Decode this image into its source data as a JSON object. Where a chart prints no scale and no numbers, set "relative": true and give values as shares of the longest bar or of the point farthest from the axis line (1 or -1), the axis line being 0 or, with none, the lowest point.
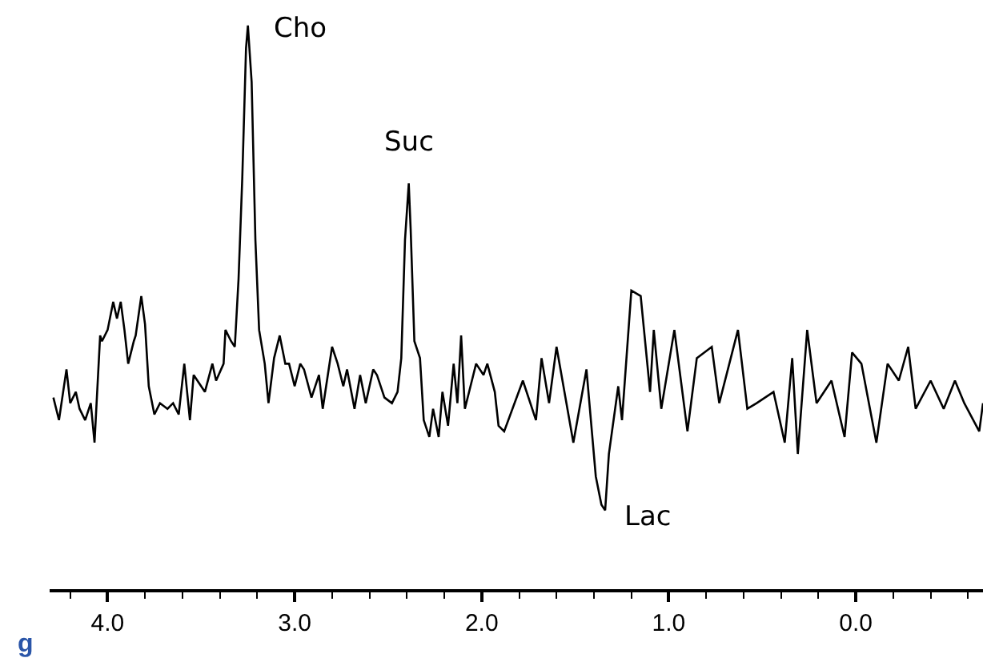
{
  "chart_data": {
    "type": "line",
    "relative": true,
    "color": "#000000",
    "marker": "none",
    "legend": false,
    "xlim": [
      4.31,
      -0.68
    ],
    "xticks": [
      {
        "value": 4.2,
        "label": null
      },
      {
        "value": 4.0,
        "label": "4.0"
      },
      {
        "value": 3.8,
        "label": null
      },
      {
        "value": 3.6,
        "label": null
      },
      {
        "value": 3.4,
        "label": null
      },
      {
        "value": 3.2,
        "label": null
      },
      {
        "value": 3.0,
        "label": "3.0"
      },
      {
        "value": 2.8,
        "label": null
      },
      {
        "value": 2.6,
        "label": null
      },
      {
        "value": 2.4,
        "label": null
      },
      {
        "value": 2.2,
        "label": null
      },
      {
        "value": 2.0,
        "label": "2.0"
      },
      {
        "value": 1.8,
        "label": null
      },
      {
        "value": 1.6,
        "label": null
      },
      {
        "value": 1.4,
        "label": null
      },
      {
        "value": 1.2,
        "label": null
      },
      {
        "value": 1.0,
        "label": "1.0"
      },
      {
        "value": 0.8,
        "label": null
      },
      {
        "value": 0.6,
        "label": null
      },
      {
        "value": 0.4,
        "label": null
      },
      {
        "value": 0.2,
        "label": null
      },
      {
        "value": 0.0,
        "label": "0.0"
      },
      {
        "value": -0.2,
        "label": null
      },
      {
        "value": -0.4,
        "label": null
      },
      {
        "value": -0.6,
        "label": null
      }
    ],
    "x": [
      4.29,
      4.26,
      4.22,
      4.2,
      4.17,
      4.15,
      4.12,
      4.09,
      4.07,
      4.04,
      4.03,
      4.0,
      3.97,
      3.95,
      3.93,
      3.91,
      3.89,
      3.86,
      3.85,
      3.82,
      3.8,
      3.78,
      3.75,
      3.72,
      3.68,
      3.65,
      3.62,
      3.59,
      3.56,
      3.54,
      3.5,
      3.48,
      3.44,
      3.42,
      3.38,
      3.37,
      3.34,
      3.32,
      3.3,
      3.28,
      3.26,
      3.25,
      3.23,
      3.21,
      3.19,
      3.16,
      3.14,
      3.11,
      3.08,
      3.05,
      3.03,
      3.0,
      2.97,
      2.95,
      2.91,
      2.87,
      2.85,
      2.8,
      2.77,
      2.74,
      2.72,
      2.68,
      2.65,
      2.62,
      2.58,
      2.56,
      2.52,
      2.48,
      2.45,
      2.43,
      2.41,
      2.39,
      2.38,
      2.36,
      2.33,
      2.31,
      2.28,
      2.26,
      2.23,
      2.21,
      2.18,
      2.15,
      2.13,
      2.11,
      2.09,
      2.06,
      2.03,
      1.99,
      1.97,
      1.93,
      1.91,
      1.88,
      1.78,
      1.71,
      1.68,
      1.64,
      1.6,
      1.51,
      1.44,
      1.39,
      1.36,
      1.34,
      1.32,
      1.27,
      1.25,
      1.2,
      1.15,
      1.1,
      1.08,
      1.04,
      0.97,
      0.9,
      0.85,
      0.77,
      0.73,
      0.63,
      0.58,
      0.53,
      0.44,
      0.38,
      0.34,
      0.31,
      0.26,
      0.21,
      0.13,
      0.06,
      0.02,
      -0.03,
      -0.11,
      -0.17,
      -0.23,
      -0.28,
      -0.32,
      -0.4,
      -0.47,
      -0.53,
      -0.58,
      -0.66,
      -0.68
    ],
    "values": [
      0.34,
      0.3,
      0.39,
      0.33,
      0.35,
      0.32,
      0.3,
      0.33,
      0.26,
      0.45,
      0.44,
      0.46,
      0.51,
      0.48,
      0.51,
      0.46,
      0.4,
      0.44,
      0.45,
      0.52,
      0.47,
      0.36,
      0.31,
      0.33,
      0.32,
      0.33,
      0.31,
      0.4,
      0.3,
      0.38,
      0.36,
      0.35,
      0.4,
      0.37,
      0.4,
      0.46,
      0.44,
      0.43,
      0.55,
      0.73,
      0.96,
      1.0,
      0.9,
      0.62,
      0.46,
      0.4,
      0.33,
      0.41,
      0.45,
      0.4,
      0.4,
      0.36,
      0.4,
      0.39,
      0.34,
      0.38,
      0.32,
      0.43,
      0.4,
      0.36,
      0.39,
      0.32,
      0.38,
      0.33,
      0.39,
      0.38,
      0.34,
      0.33,
      0.35,
      0.41,
      0.62,
      0.72,
      0.64,
      0.44,
      0.41,
      0.3,
      0.27,
      0.32,
      0.27,
      0.35,
      0.29,
      0.4,
      0.33,
      0.45,
      0.32,
      0.36,
      0.4,
      0.38,
      0.4,
      0.35,
      0.29,
      0.28,
      0.37,
      0.3,
      0.41,
      0.33,
      0.43,
      0.26,
      0.39,
      0.2,
      0.15,
      0.14,
      0.24,
      0.36,
      0.3,
      0.53,
      0.52,
      0.35,
      0.46,
      0.32,
      0.46,
      0.28,
      0.41,
      0.43,
      0.33,
      0.46,
      0.32,
      0.33,
      0.35,
      0.26,
      0.41,
      0.24,
      0.46,
      0.33,
      0.37,
      0.27,
      0.42,
      0.4,
      0.26,
      0.4,
      0.37,
      0.43,
      0.32,
      0.37,
      0.32,
      0.37,
      0.33,
      0.28,
      0.33
    ],
    "annotations": [
      {
        "text": "Cho",
        "x": 3.25,
        "y": 1.0
      },
      {
        "text": "Suc",
        "x": 2.39,
        "y": 0.72
      },
      {
        "text": "Lac",
        "x": 1.34,
        "y": 0.14
      },
      "g"
    ]
  }
}
